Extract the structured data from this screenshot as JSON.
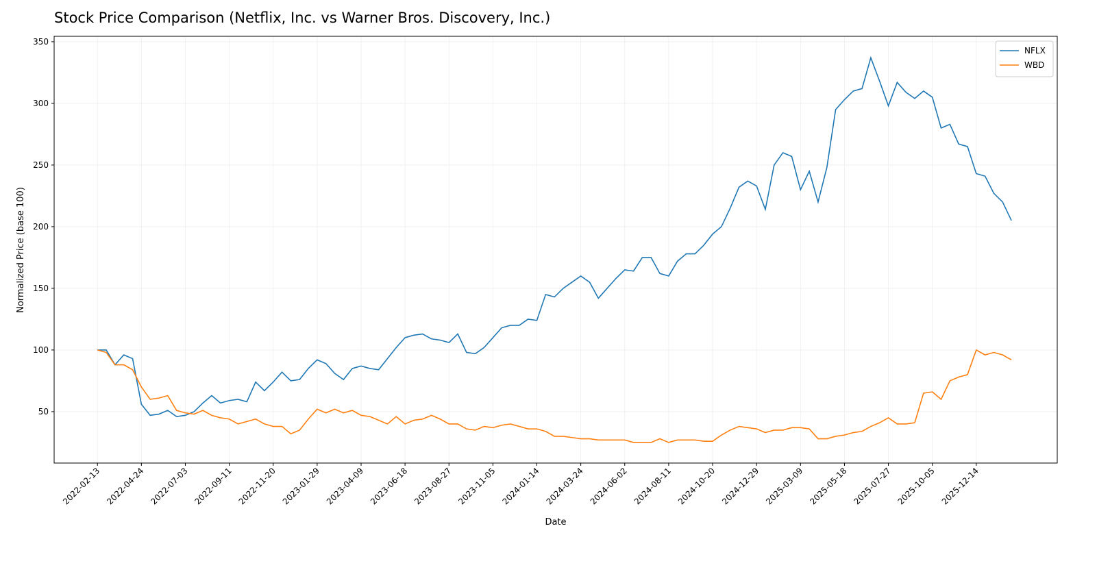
{
  "chart_data": {
    "type": "line",
    "title": "Stock Price Comparison (Netflix, Inc. vs Warner Bros. Discovery, Inc.)",
    "x_label": "Date",
    "y_label": "Normalized Price (base 100)",
    "x": [
      "2022-02-13",
      "2022-02-27",
      "2022-03-13",
      "2022-03-27",
      "2022-04-10",
      "2022-04-24",
      "2022-05-08",
      "2022-05-22",
      "2022-06-05",
      "2022-06-19",
      "2022-07-03",
      "2022-07-17",
      "2022-07-31",
      "2022-08-14",
      "2022-08-28",
      "2022-09-11",
      "2022-09-25",
      "2022-10-09",
      "2022-10-23",
      "2022-11-06",
      "2022-11-20",
      "2022-12-04",
      "2022-12-18",
      "2023-01-01",
      "2023-01-15",
      "2023-01-29",
      "2023-02-12",
      "2023-02-26",
      "2023-03-12",
      "2023-03-26",
      "2023-04-09",
      "2023-04-23",
      "2023-05-07",
      "2023-05-21",
      "2023-06-04",
      "2023-06-18",
      "2023-07-02",
      "2023-07-16",
      "2023-07-30",
      "2023-08-13",
      "2023-08-27",
      "2023-09-10",
      "2023-09-24",
      "2023-10-08",
      "2023-10-22",
      "2023-11-05",
      "2023-11-19",
      "2023-12-03",
      "2023-12-17",
      "2023-12-31",
      "2024-01-14",
      "2024-01-28",
      "2024-02-11",
      "2024-02-25",
      "2024-03-10",
      "2024-03-24",
      "2024-04-07",
      "2024-04-21",
      "2024-05-05",
      "2024-05-19",
      "2024-06-02",
      "2024-06-16",
      "2024-06-30",
      "2024-07-14",
      "2024-07-28",
      "2024-08-11",
      "2024-08-25",
      "2024-09-08",
      "2024-09-22",
      "2024-10-06",
      "2024-10-20",
      "2024-11-03",
      "2024-11-17",
      "2024-12-01",
      "2024-12-15",
      "2024-12-29",
      "2025-01-12",
      "2025-01-26",
      "2025-02-09",
      "2025-02-23",
      "2025-03-09",
      "2025-03-23",
      "2025-04-06",
      "2025-04-20",
      "2025-05-04",
      "2025-05-18",
      "2025-06-01",
      "2025-06-15",
      "2025-06-29",
      "2025-07-13",
      "2025-07-27",
      "2025-08-10",
      "2025-08-24",
      "2025-09-07",
      "2025-09-21",
      "2025-10-05",
      "2025-10-19",
      "2025-11-02",
      "2025-11-16",
      "2025-11-30",
      "2025-12-14",
      "2025-12-28",
      "2026-01-11",
      "2026-01-25",
      "2026-02-08"
    ],
    "series": [
      {
        "name": "NFLX",
        "color": "#1f77b4",
        "values": [
          100,
          100,
          88,
          96,
          93,
          56,
          47,
          48,
          51,
          46,
          47,
          50,
          57,
          63,
          57,
          59,
          60,
          58,
          74,
          67,
          74,
          82,
          75,
          76,
          85,
          92,
          89,
          81,
          76,
          85,
          87,
          85,
          84,
          93,
          102,
          110,
          112,
          113,
          109,
          108,
          106,
          113,
          98,
          97,
          102,
          110,
          118,
          120,
          120,
          125,
          124,
          145,
          143,
          150,
          155,
          160,
          155,
          142,
          150,
          158,
          165,
          164,
          175,
          175,
          162,
          160,
          172,
          178,
          178,
          185,
          194,
          200,
          215,
          232,
          237,
          233,
          214,
          250,
          260,
          257,
          230,
          245,
          220,
          248,
          295,
          303,
          310,
          312,
          337,
          318,
          298,
          317,
          309,
          304,
          310,
          305,
          280,
          283,
          267,
          265,
          243,
          241,
          227,
          220,
          205
        ]
      },
      {
        "name": "WBD",
        "color": "#ff7f0e",
        "values": [
          100,
          98,
          88,
          88,
          84,
          70,
          60,
          61,
          63,
          51,
          49,
          48,
          51,
          47,
          45,
          44,
          40,
          42,
          44,
          40,
          38,
          38,
          32,
          35,
          44,
          52,
          49,
          52,
          49,
          51,
          47,
          46,
          43,
          40,
          46,
          40,
          43,
          44,
          47,
          44,
          40,
          40,
          36,
          35,
          38,
          37,
          39,
          40,
          38,
          36,
          36,
          34,
          30,
          30,
          29,
          28,
          28,
          27,
          27,
          27,
          27,
          25,
          25,
          25,
          28,
          25,
          27,
          27,
          27,
          26,
          26,
          31,
          35,
          38,
          37,
          36,
          33,
          35,
          35,
          37,
          37,
          36,
          28,
          28,
          30,
          31,
          33,
          34,
          38,
          41,
          45,
          40,
          40,
          41,
          65,
          66,
          60,
          75,
          78,
          80,
          100,
          96,
          98,
          96,
          92
        ]
      }
    ],
    "xlim": [
      "2021-12-06",
      "2026-04-22"
    ],
    "xticks": [
      "2022-02-13",
      "2022-04-24",
      "2022-07-03",
      "2022-09-11",
      "2022-11-20",
      "2023-01-29",
      "2023-04-09",
      "2023-06-18",
      "2023-08-27",
      "2023-11-05",
      "2024-01-14",
      "2024-03-24",
      "2024-06-02",
      "2024-08-11",
      "2024-10-20",
      "2024-12-29",
      "2025-03-09",
      "2025-05-18",
      "2025-07-27",
      "2025-10-05",
      "2025-12-14"
    ],
    "ylim": [
      8.3,
      354.4
    ],
    "yticks": [
      50,
      100,
      150,
      200,
      250,
      300,
      350
    ],
    "grid": true,
    "legend": "upper-right"
  }
}
